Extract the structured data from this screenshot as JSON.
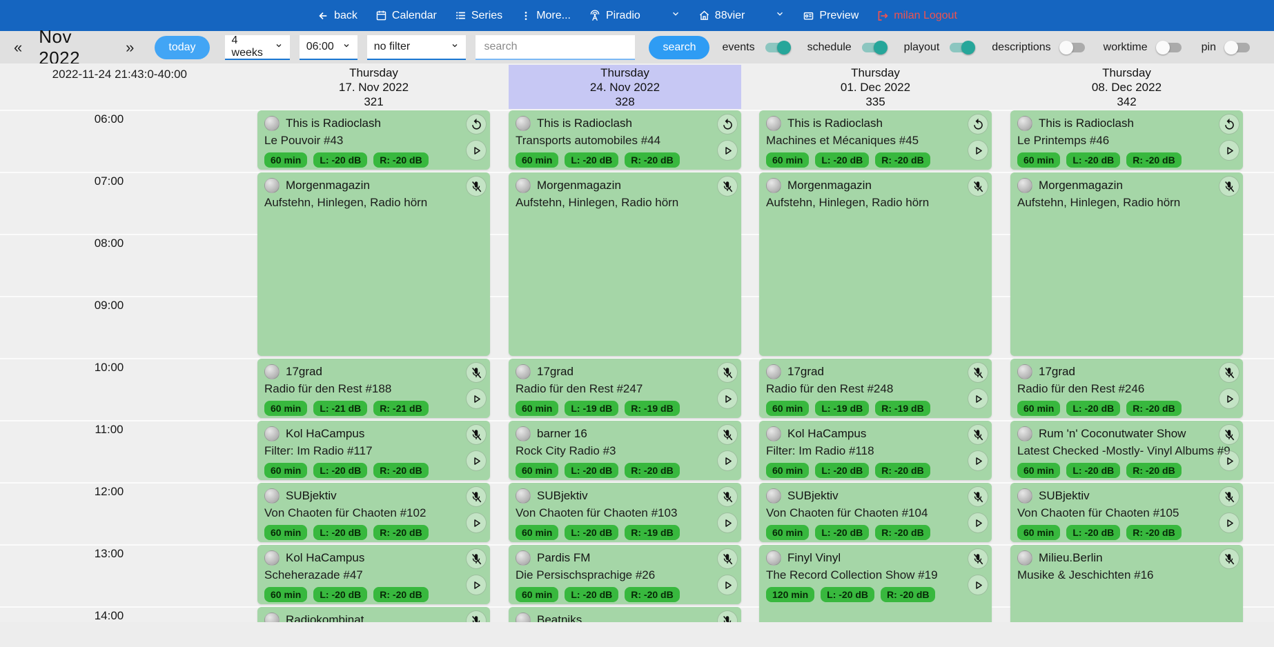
{
  "navbar": {
    "back": "back",
    "calendar": "Calendar",
    "series": "Series",
    "more": "More...",
    "station": "Piradio",
    "channel": "88vier",
    "preview": "Preview",
    "logout": "milan Logout"
  },
  "toolbar": {
    "prev": "«",
    "month": "Nov 2022",
    "next": "»",
    "today": "today",
    "range_select": "4 weeks",
    "time_select": "06:00",
    "filter_select": "no filter",
    "search_placeholder": "search",
    "search_button": "search",
    "toggles": [
      {
        "label": "events",
        "on": true
      },
      {
        "label": "schedule",
        "on": true
      },
      {
        "label": "playout",
        "on": true
      },
      {
        "label": "descriptions",
        "on": false
      },
      {
        "label": "worktime",
        "on": false
      },
      {
        "label": "pin",
        "on": false
      }
    ]
  },
  "timeline": {
    "timestamp": "2022-11-24 21:43:0-40:00",
    "hours": [
      "06:00",
      "07:00",
      "08:00",
      "09:00",
      "10:00",
      "11:00",
      "12:00",
      "13:00",
      "14:00"
    ]
  },
  "colors": {
    "navbar_blue": "#1565c0",
    "button_blue": "#42a5f5",
    "toggle_teal": "#26a69a",
    "card_green": "#a5d6a7",
    "badge_green": "#38b83e",
    "selected_day_purple": "#c7c8f4",
    "logout_red": "#ef5350"
  },
  "columns": [
    {
      "weekday": "Thursday",
      "date": "17. Nov 2022",
      "day_number": "321",
      "selected": false,
      "events": [
        {
          "show": "This is Radioclash",
          "episode": "Le Pouvoir #43",
          "badges": [
            "60 min",
            "L: -20 dB",
            "R: -20 dB"
          ],
          "icons": [
            "replay",
            "play"
          ],
          "start_hour": 6,
          "duration_hours": 1
        },
        {
          "show": "Morgenmagazin",
          "episode": "Aufstehn, Hinlegen, Radio hörn",
          "badges": [],
          "icons": [
            "mic-off"
          ],
          "start_hour": 7,
          "duration_hours": 3
        },
        {
          "show": "17grad",
          "episode": "Radio für den Rest #188",
          "badges": [
            "60 min",
            "L: -21 dB",
            "R: -21 dB"
          ],
          "icons": [
            "mic-off",
            "play"
          ],
          "start_hour": 10,
          "duration_hours": 1
        },
        {
          "show": "Kol HaCampus",
          "episode": "Filter: Im Radio #117",
          "badges": [
            "60 min",
            "L: -20 dB",
            "R: -20 dB"
          ],
          "icons": [
            "mic-off",
            "play"
          ],
          "start_hour": 11,
          "duration_hours": 1
        },
        {
          "show": "SUBjektiv",
          "episode": "Von Chaoten für Chaoten #102",
          "badges": [
            "60 min",
            "L: -20 dB",
            "R: -20 dB"
          ],
          "icons": [
            "mic-off",
            "play"
          ],
          "start_hour": 12,
          "duration_hours": 1
        },
        {
          "show": "Kol HaCampus",
          "episode": "Scheherazade #47",
          "badges": [
            "60 min",
            "L: -20 dB",
            "R: -20 dB"
          ],
          "icons": [
            "mic-off",
            "play"
          ],
          "start_hour": 13,
          "duration_hours": 1
        },
        {
          "show": "Radiokombinat",
          "episode": "",
          "badges": [],
          "icons": [
            "mic-off"
          ],
          "start_hour": 14,
          "duration_hours": 1
        }
      ]
    },
    {
      "weekday": "Thursday",
      "date": "24. Nov 2022",
      "day_number": "328",
      "selected": true,
      "events": [
        {
          "show": "This is Radioclash",
          "episode": "Transports automobiles #44",
          "badges": [
            "60 min",
            "L: -20 dB",
            "R: -20 dB"
          ],
          "icons": [
            "replay",
            "play"
          ],
          "start_hour": 6,
          "duration_hours": 1
        },
        {
          "show": "Morgenmagazin",
          "episode": "Aufstehn, Hinlegen, Radio hörn",
          "badges": [],
          "icons": [
            "mic-off"
          ],
          "start_hour": 7,
          "duration_hours": 3
        },
        {
          "show": "17grad",
          "episode": "Radio für den Rest #247",
          "badges": [
            "60 min",
            "L: -19 dB",
            "R: -19 dB"
          ],
          "icons": [
            "mic-off",
            "play"
          ],
          "start_hour": 10,
          "duration_hours": 1
        },
        {
          "show": "barner 16",
          "episode": "Rock City Radio #3",
          "badges": [
            "60 min",
            "L: -20 dB",
            "R: -20 dB"
          ],
          "icons": [
            "mic-off",
            "play"
          ],
          "start_hour": 11,
          "duration_hours": 1
        },
        {
          "show": "SUBjektiv",
          "episode": "Von Chaoten für Chaoten #103",
          "badges": [
            "60 min",
            "L: -20 dB",
            "R: -19 dB"
          ],
          "icons": [
            "mic-off",
            "play"
          ],
          "start_hour": 12,
          "duration_hours": 1
        },
        {
          "show": "Pardis FM",
          "episode": "Die Persischsprachige #26",
          "badges": [
            "60 min",
            "L: -20 dB",
            "R: -20 dB"
          ],
          "icons": [
            "mic-off",
            "play"
          ],
          "start_hour": 13,
          "duration_hours": 1
        },
        {
          "show": "Beatniks",
          "episode": "",
          "badges": [],
          "icons": [
            "mic-off"
          ],
          "start_hour": 14,
          "duration_hours": 1
        }
      ]
    },
    {
      "weekday": "Thursday",
      "date": "01. Dec 2022",
      "day_number": "335",
      "selected": false,
      "events": [
        {
          "show": "This is Radioclash",
          "episode": "Machines et Mécaniques #45",
          "badges": [
            "60 min",
            "L: -20 dB",
            "R: -20 dB"
          ],
          "icons": [
            "replay",
            "play"
          ],
          "start_hour": 6,
          "duration_hours": 1
        },
        {
          "show": "Morgenmagazin",
          "episode": "Aufstehn, Hinlegen, Radio hörn",
          "badges": [],
          "icons": [
            "mic-off"
          ],
          "start_hour": 7,
          "duration_hours": 3
        },
        {
          "show": "17grad",
          "episode": "Radio für den Rest #248",
          "badges": [
            "60 min",
            "L: -19 dB",
            "R: -19 dB"
          ],
          "icons": [
            "mic-off",
            "play"
          ],
          "start_hour": 10,
          "duration_hours": 1
        },
        {
          "show": "Kol HaCampus",
          "episode": "Filter: Im Radio #118",
          "badges": [
            "60 min",
            "L: -20 dB",
            "R: -20 dB"
          ],
          "icons": [
            "mic-off",
            "play"
          ],
          "start_hour": 11,
          "duration_hours": 1
        },
        {
          "show": "SUBjektiv",
          "episode": "Von Chaoten für Chaoten #104",
          "badges": [
            "60 min",
            "L: -20 dB",
            "R: -20 dB"
          ],
          "icons": [
            "mic-off",
            "play"
          ],
          "start_hour": 12,
          "duration_hours": 1
        },
        {
          "show": "Finyl Vinyl",
          "episode": "The Record Collection Show #19",
          "badges": [
            "120 min",
            "L: -20 dB",
            "R: -20 dB"
          ],
          "icons": [
            "mic-off",
            "play"
          ],
          "start_hour": 13,
          "duration_hours": 2
        }
      ]
    },
    {
      "weekday": "Thursday",
      "date": "08. Dec 2022",
      "day_number": "342",
      "selected": false,
      "events": [
        {
          "show": "This is Radioclash",
          "episode": "Le Printemps #46",
          "badges": [
            "60 min",
            "L: -20 dB",
            "R: -20 dB"
          ],
          "icons": [
            "replay",
            "play"
          ],
          "start_hour": 6,
          "duration_hours": 1
        },
        {
          "show": "Morgenmagazin",
          "episode": "Aufstehn, Hinlegen, Radio hörn",
          "badges": [],
          "icons": [
            "mic-off"
          ],
          "start_hour": 7,
          "duration_hours": 3
        },
        {
          "show": "17grad",
          "episode": "Radio für den Rest #246",
          "badges": [
            "60 min",
            "L: -20 dB",
            "R: -20 dB"
          ],
          "icons": [
            "mic-off",
            "play"
          ],
          "start_hour": 10,
          "duration_hours": 1
        },
        {
          "show": "Rum 'n' Coconutwater Show",
          "episode": "Latest Checked -Mostly- Vinyl Albums #9",
          "badges": [
            "60 min",
            "L: -20 dB",
            "R: -20 dB"
          ],
          "icons": [
            "mic-off",
            "play"
          ],
          "start_hour": 11,
          "duration_hours": 1
        },
        {
          "show": "SUBjektiv",
          "episode": "Von Chaoten für Chaoten #105",
          "badges": [
            "60 min",
            "L: -20 dB",
            "R: -20 dB"
          ],
          "icons": [
            "mic-off",
            "play"
          ],
          "start_hour": 12,
          "duration_hours": 1
        },
        {
          "show": "Milieu.Berlin",
          "episode": "Musike & Jeschichten #16",
          "badges": [],
          "icons": [
            "mic-off"
          ],
          "start_hour": 13,
          "duration_hours": 2
        }
      ]
    }
  ]
}
